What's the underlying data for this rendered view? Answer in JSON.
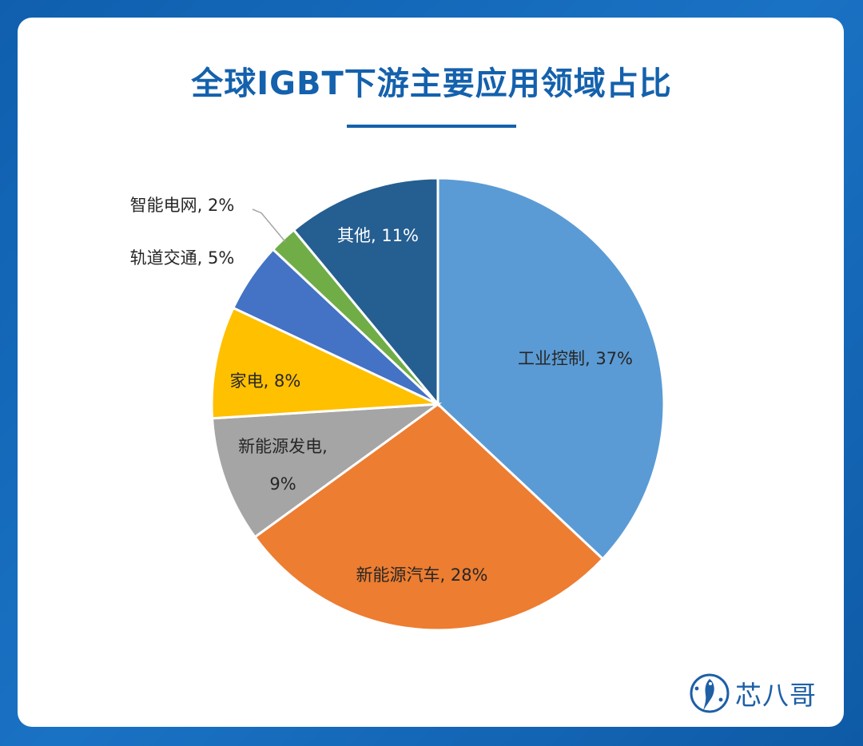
{
  "page": {
    "title": "全球IGBT下游主要应用领域占比",
    "logo_text": "芯八哥"
  },
  "chart_data": {
    "type": "pie",
    "title": "全球IGBT下游主要应用领域占比",
    "slices": [
      {
        "label": "工业控制",
        "value": 37,
        "label_text": "工业控制, 37%",
        "color": "#5b9bd5",
        "text_color": "#262626"
      },
      {
        "label": "新能源汽车",
        "value": 28,
        "label_text": "新能源汽车, 28%",
        "color": "#ed7d31",
        "text_color": "#262626"
      },
      {
        "label": "新能源发电",
        "value": 9,
        "label_text": "新能源发电,\n9%",
        "color": "#a5a5a5",
        "text_color": "#262626"
      },
      {
        "label": "家电",
        "value": 8,
        "label_text": "家电, 8%",
        "color": "#ffc000",
        "text_color": "#262626"
      },
      {
        "label": "轨道交通",
        "value": 5,
        "label_text": "轨道交通, 5%",
        "color": "#4472c4",
        "text_color": "#262626"
      },
      {
        "label": "智能电网",
        "value": 2,
        "label_text": "智能电网, 2%",
        "color": "#70ad47",
        "text_color": "#262626"
      },
      {
        "label": "其他",
        "value": 11,
        "label_text": "其他, 11%",
        "color": "#255e91",
        "text_color": "#ffffff"
      }
    ],
    "start_angle": "12 o'clock",
    "direction": "clockwise",
    "legend": "none"
  }
}
